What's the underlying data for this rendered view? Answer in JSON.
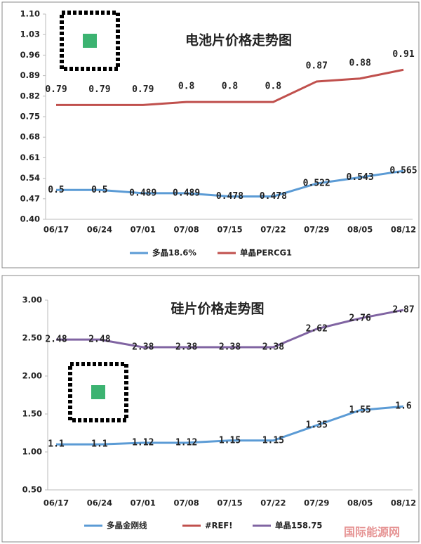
{
  "chart_data": [
    {
      "type": "line",
      "title": "电池片价格走势图",
      "categories": [
        "06/17",
        "06/24",
        "07/01",
        "07/08",
        "07/15",
        "07/22",
        "07/29",
        "08/05",
        "08/12"
      ],
      "series": [
        {
          "name": "多晶18.6%",
          "color": "#5b9bd5",
          "values": [
            0.5,
            0.5,
            0.489,
            0.489,
            0.478,
            0.478,
            0.522,
            0.543,
            0.565
          ]
        },
        {
          "name": "单晶PERCG1",
          "color": "#c0504d",
          "values": [
            0.79,
            0.79,
            0.79,
            0.8,
            0.8,
            0.8,
            0.87,
            0.88,
            0.91
          ]
        }
      ],
      "ylim": [
        0.4,
        1.1
      ],
      "yticks": [
        {
          "value": 0.4,
          "label": "0.40"
        },
        0.47,
        0.54,
        0.61,
        0.68,
        0.75,
        0.82,
        0.89,
        0.96,
        1.03,
        {
          "value": 1.1,
          "label": "1.10"
        }
      ],
      "legend": "bottom"
    },
    {
      "type": "line",
      "title": "硅片价格走势图",
      "categories": [
        "06/17",
        "06/24",
        "07/01",
        "07/08",
        "07/15",
        "07/22",
        "07/29",
        "08/05",
        "08/12"
      ],
      "series": [
        {
          "name": "多晶金刚线",
          "color": "#5b9bd5",
          "values": [
            1.1,
            1.1,
            1.12,
            1.12,
            1.15,
            1.15,
            1.35,
            1.55,
            1.6
          ]
        },
        {
          "name": "#REF!",
          "color": "#c0504d",
          "values": [
            null,
            null,
            null,
            null,
            null,
            null,
            null,
            null,
            null
          ]
        },
        {
          "name": "单晶158.75",
          "color": "#8064a2",
          "values": [
            2.48,
            2.48,
            2.38,
            2.38,
            2.38,
            2.38,
            2.62,
            2.76,
            2.87
          ]
        }
      ],
      "ylim": [
        0.5,
        3.0
      ],
      "yticks": [
        {
          "value": 0.5,
          "label": "0.50"
        },
        {
          "value": 1.0,
          "label": "1.00"
        },
        {
          "value": 1.5,
          "label": "1.50"
        },
        {
          "value": 2.0,
          "label": "2.00"
        },
        {
          "value": 2.5,
          "label": "2.50"
        },
        {
          "value": 3.0,
          "label": "3.00"
        }
      ],
      "legend": "bottom"
    }
  ],
  "watermark": "国际能源网"
}
